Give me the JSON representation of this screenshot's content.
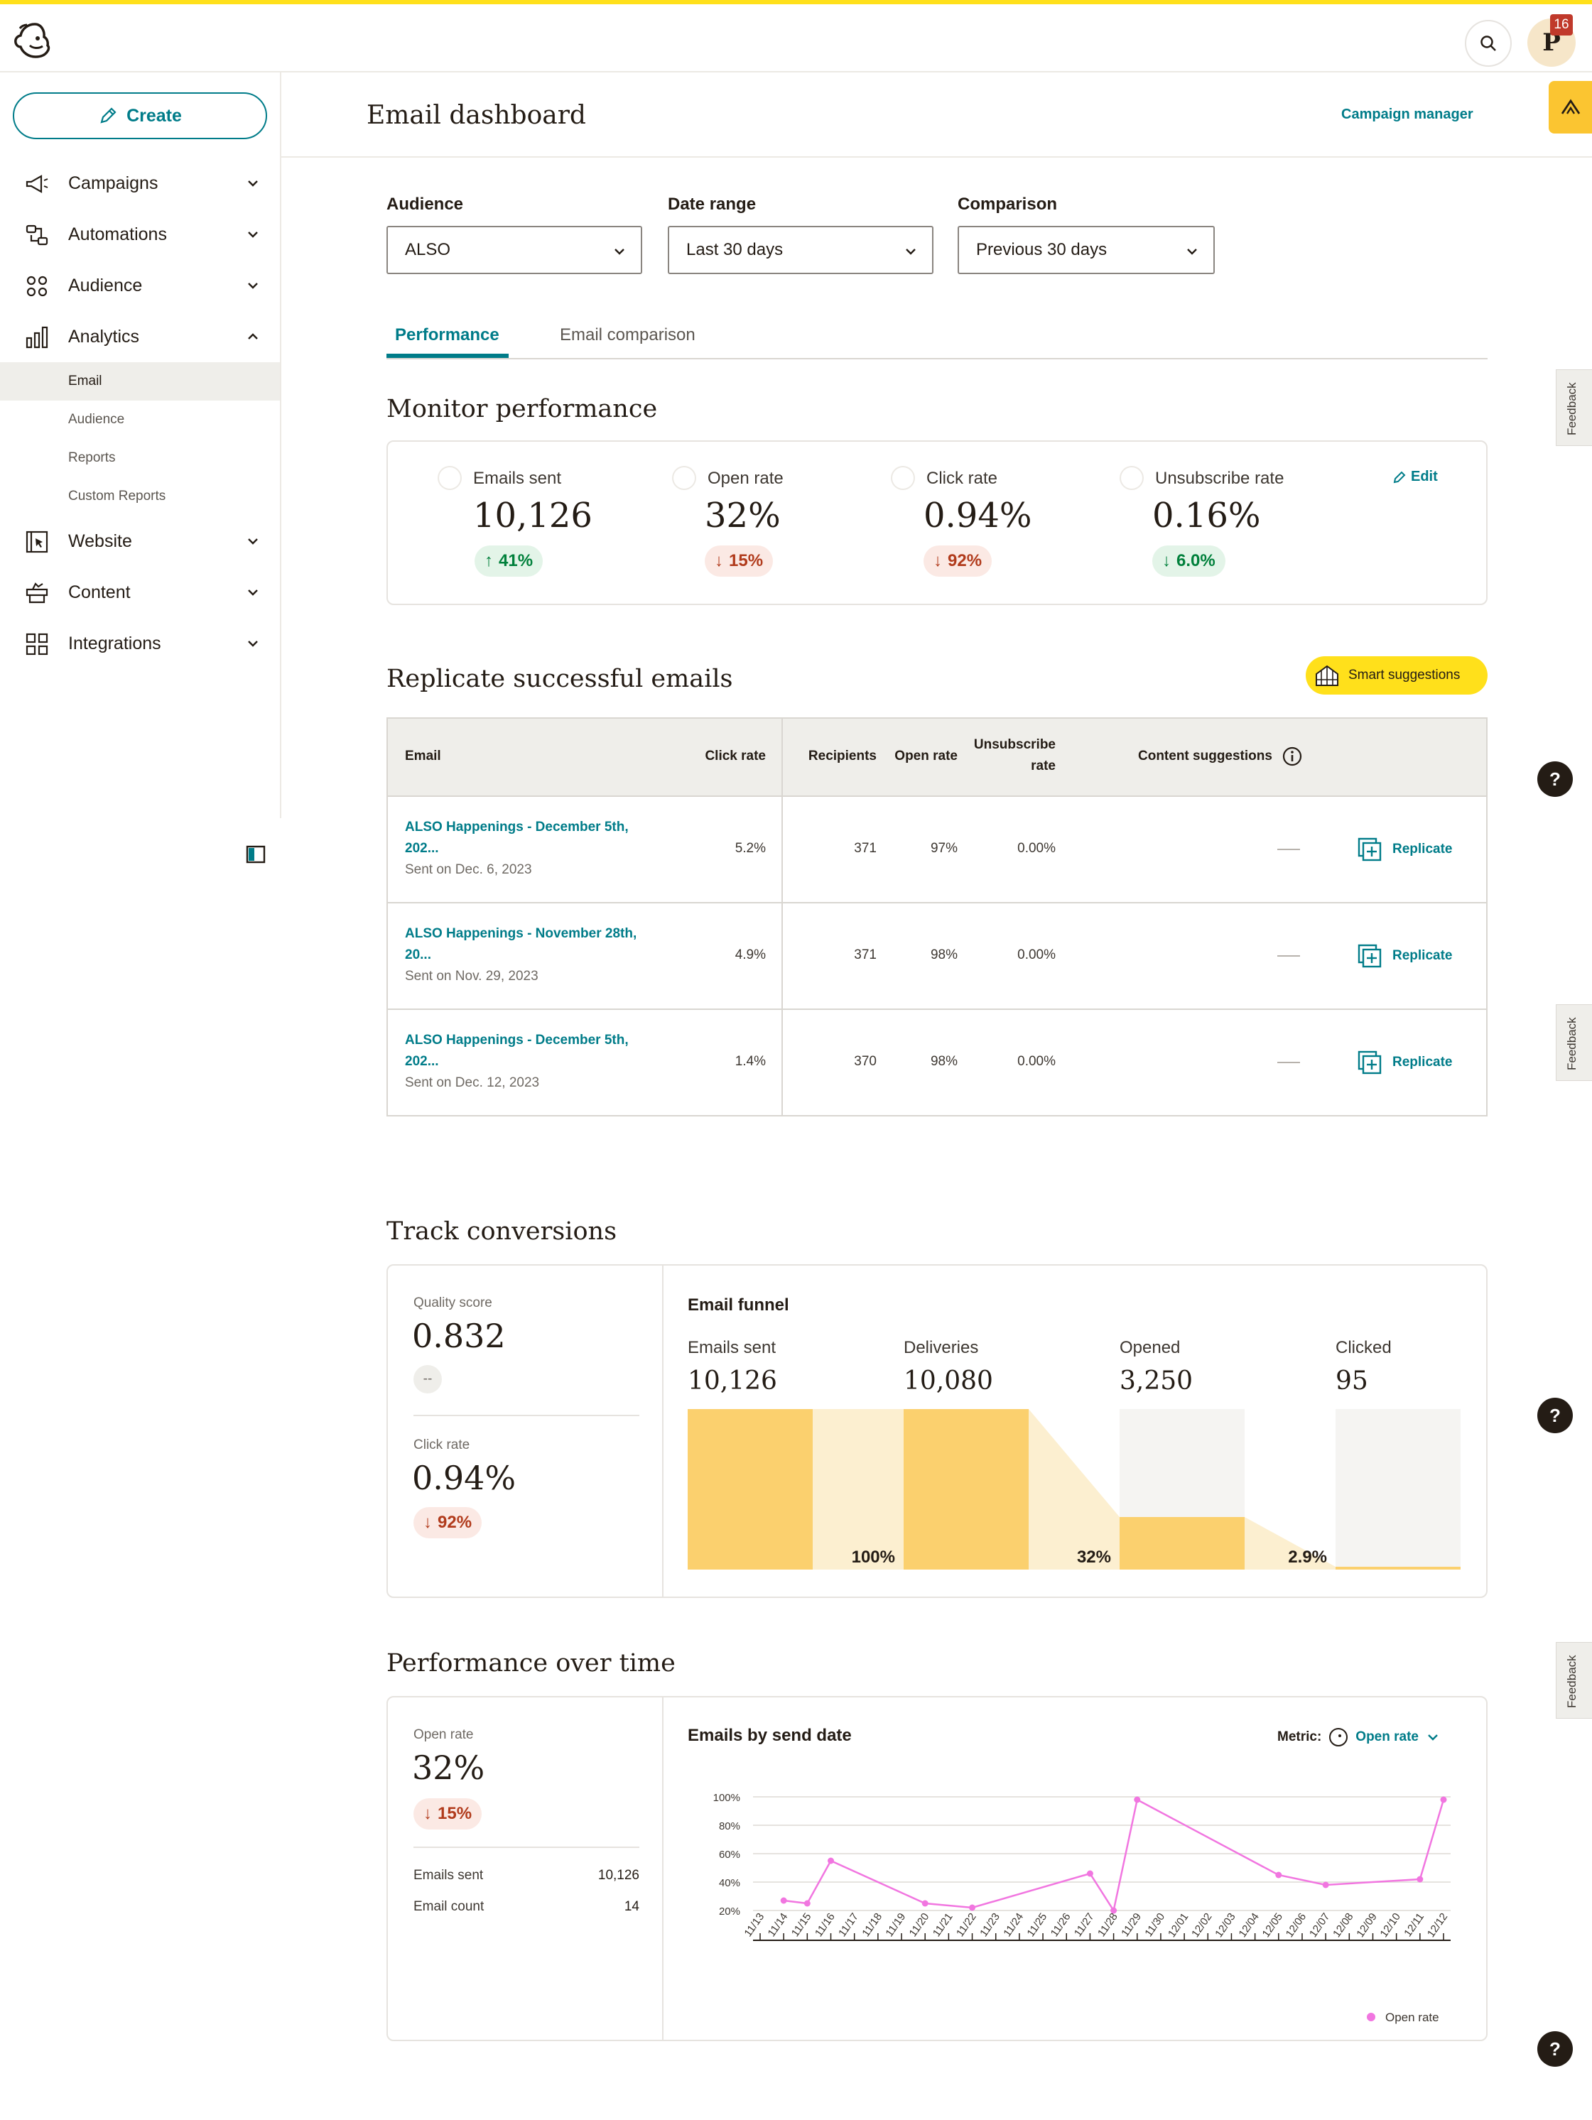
{
  "topbar": {
    "notification_count": "16",
    "avatar_initial": "P"
  },
  "sidebar": {
    "create_label": "Create",
    "items": [
      {
        "label": "Campaigns"
      },
      {
        "label": "Automations"
      },
      {
        "label": "Audience"
      },
      {
        "label": "Analytics"
      },
      {
        "label": "Website"
      },
      {
        "label": "Content"
      },
      {
        "label": "Integrations"
      }
    ],
    "analytics_sub": [
      {
        "label": "Email"
      },
      {
        "label": "Audience"
      },
      {
        "label": "Reports"
      },
      {
        "label": "Custom Reports"
      }
    ]
  },
  "header": {
    "title": "Email dashboard",
    "campaign_manager": "Campaign manager"
  },
  "filters": {
    "audience_label": "Audience",
    "audience_value": "ALSO",
    "date_label": "Date range",
    "date_value": "Last 30 days",
    "comparison_label": "Comparison",
    "comparison_value": "Previous 30 days"
  },
  "tabs": {
    "performance": "Performance",
    "comparison": "Email comparison"
  },
  "monitor": {
    "title": "Monitor performance",
    "edit": "Edit",
    "stats": [
      {
        "label": "Emails sent",
        "value": "10,126",
        "change": "41%",
        "direction": "up"
      },
      {
        "label": "Open rate",
        "value": "32%",
        "change": "15%",
        "direction": "down"
      },
      {
        "label": "Click rate",
        "value": "0.94%",
        "change": "92%",
        "direction": "down"
      },
      {
        "label": "Unsubscribe rate",
        "value": "0.16%",
        "change": "6.0%",
        "direction": "down-good"
      }
    ]
  },
  "replicate": {
    "title": "Replicate successful emails",
    "smart_suggestions": "Smart suggestions",
    "columns": {
      "email": "Email",
      "click_rate": "Click rate",
      "recipients": "Recipients",
      "open_rate": "Open rate",
      "unsub_line1": "Unsubscribe",
      "unsub_line2": "rate",
      "content_suggestions": "Content suggestions"
    },
    "replicate_label": "Replicate",
    "rows": [
      {
        "name_line1": "ALSO Happenings - December 5th,",
        "name_line2": "202...",
        "sent": "Sent on Dec. 6, 2023",
        "click_rate": "5.2%",
        "recipients": "371",
        "open_rate": "97%",
        "unsub_rate": "0.00%"
      },
      {
        "name_line1": "ALSO Happenings - November 28th,",
        "name_line2": "20...",
        "sent": "Sent on Nov. 29, 2023",
        "click_rate": "4.9%",
        "recipients": "371",
        "open_rate": "98%",
        "unsub_rate": "0.00%"
      },
      {
        "name_line1": "ALSO Happenings - December 5th,",
        "name_line2": "202...",
        "sent": "Sent on Dec. 12, 2023",
        "click_rate": "1.4%",
        "recipients": "370",
        "open_rate": "98%",
        "unsub_rate": "0.00%"
      }
    ]
  },
  "conversions": {
    "title": "Track conversions",
    "quality_label": "Quality score",
    "quality_value": "0.832",
    "quality_change": "--",
    "click_label": "Click rate",
    "click_value": "0.94%",
    "click_change": "92%",
    "funnel_title": "Email funnel",
    "stages": [
      {
        "label": "Emails sent",
        "value": "10,126"
      },
      {
        "label": "Deliveries",
        "value": "10,080"
      },
      {
        "label": "Opened",
        "value": "3,250"
      },
      {
        "label": "Clicked",
        "value": "95"
      }
    ],
    "pcts": [
      "100%",
      "32%",
      "2.9%"
    ]
  },
  "overtime": {
    "title": "Performance over time",
    "open_label": "Open rate",
    "open_value": "32%",
    "open_change": "15%",
    "emails_sent_label": "Emails sent",
    "emails_sent_value": "10,126",
    "email_count_label": "Email count",
    "email_count_value": "14",
    "chart_title": "Emails by send date",
    "metric_label": "Metric:",
    "metric_value": "Open rate"
  },
  "chart_data": {
    "type": "line",
    "title": "Emails by send date",
    "x": [
      "11/13",
      "11/14",
      "11/15",
      "11/16",
      "11/17",
      "11/18",
      "11/19",
      "11/20",
      "11/21",
      "11/22",
      "11/23",
      "11/24",
      "11/25",
      "11/26",
      "11/27",
      "11/28",
      "11/29",
      "11/30",
      "12/01",
      "12/02",
      "12/03",
      "12/04",
      "12/05",
      "12/06",
      "12/07",
      "12/08",
      "12/09",
      "12/10",
      "12/11",
      "12/12"
    ],
    "series": [
      {
        "name": "Open rate",
        "color": "#f176e0",
        "points": [
          {
            "x": "11/14",
            "y": 27
          },
          {
            "x": "11/15",
            "y": 25
          },
          {
            "x": "11/16",
            "y": 55
          },
          {
            "x": "11/20",
            "y": 25
          },
          {
            "x": "11/22",
            "y": 22
          },
          {
            "x": "11/27",
            "y": 46
          },
          {
            "x": "11/28",
            "y": 20
          },
          {
            "x": "11/29",
            "y": 98
          },
          {
            "x": "12/05",
            "y": 45
          },
          {
            "x": "12/07",
            "y": 38
          },
          {
            "x": "12/11",
            "y": 42
          },
          {
            "x": "12/12",
            "y": 98
          }
        ]
      }
    ],
    "yticks": [
      "20%",
      "40%",
      "60%",
      "80%",
      "100%"
    ],
    "ylim": [
      20,
      100
    ],
    "legend": "bottom-right",
    "grid": true
  },
  "feedback_label": "Feedback",
  "help_label": "?"
}
